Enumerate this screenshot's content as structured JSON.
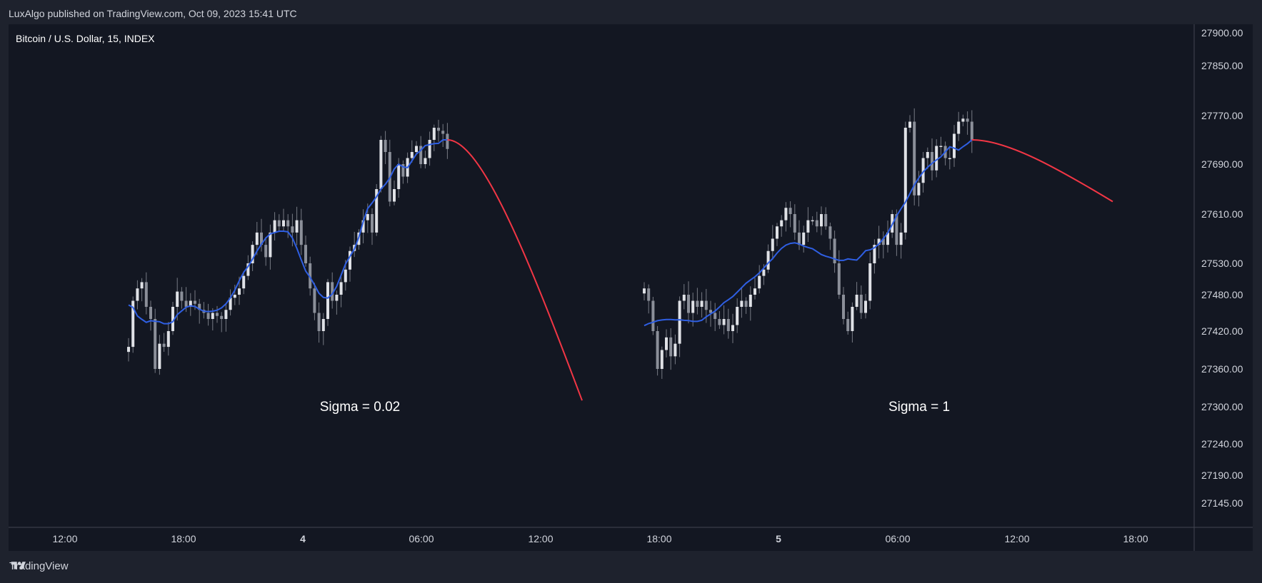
{
  "header": {
    "publisher": "LuxAlgo published on TradingView.com, Oct 09, 2023 15:41 UTC"
  },
  "symbol": "Bitcoin / U.S. Dollar, 15, INDEX",
  "footer": {
    "brand": "TradingView"
  },
  "colors": {
    "background": "#131722",
    "candle": "#c9ccd3",
    "smooth": "#2f5fe3",
    "forecast": "#f23645",
    "text": "#d1d4dc"
  },
  "chart_data": {
    "type": "candlestick",
    "y_axis": {
      "ticks": [
        27900,
        27850,
        27770,
        27690,
        27610,
        27530,
        27480,
        27420,
        27360,
        27300,
        27240,
        27190,
        27145
      ],
      "tick_labels": [
        "27900.00",
        "27850.00",
        "27770.00",
        "27690.00",
        "27610.00",
        "27530.00",
        "27480.00",
        "27420.00",
        "27360.00",
        "27300.00",
        "27240.00",
        "27190.00",
        "27145.00"
      ],
      "position": "right"
    },
    "x_axis": {
      "ticks": [
        {
          "label": "12:00",
          "bold": false
        },
        {
          "label": "18:00",
          "bold": false
        },
        {
          "label": "4",
          "bold": true
        },
        {
          "label": "06:00",
          "bold": false
        },
        {
          "label": "12:00",
          "bold": false
        },
        {
          "label": "18:00",
          "bold": false
        },
        {
          "label": "5",
          "bold": true
        },
        {
          "label": "06:00",
          "bold": false
        },
        {
          "label": "12:00",
          "bold": false
        },
        {
          "label": "18:00",
          "bold": false
        }
      ]
    },
    "panels": [
      {
        "annotation": "Sigma = 0.02",
        "close": [
          27395,
          27470,
          27490,
          27500,
          27460,
          27440,
          27360,
          27400,
          27395,
          27420,
          27460,
          27485,
          27470,
          27460,
          27470,
          27465,
          27455,
          27450,
          27440,
          27450,
          27445,
          27440,
          27455,
          27475,
          27480,
          27490,
          27510,
          27530,
          27560,
          27580,
          27560,
          27540,
          27580,
          27600,
          27590,
          27600,
          27590,
          27580,
          27600,
          27560,
          27530,
          27490,
          27450,
          27420,
          27440,
          27500,
          27470,
          27480,
          27500,
          27520,
          27550,
          27560,
          27580,
          27600,
          27610,
          27580,
          27650,
          27730,
          27710,
          27630,
          27650,
          27690,
          27670,
          27700,
          27710,
          27720,
          27690,
          27700,
          27730,
          27750,
          27745,
          27740,
          27715
        ],
        "smooth_end": 27730,
        "forecast_end": 27310
      },
      {
        "annotation": "Sigma = 1",
        "close": [
          27490,
          27470,
          27420,
          27360,
          27390,
          27410,
          27380,
          27400,
          27470,
          27480,
          27450,
          27470,
          27460,
          27470,
          27455,
          27450,
          27440,
          27430,
          27440,
          27420,
          27430,
          27460,
          27470,
          27460,
          27480,
          27490,
          27510,
          27520,
          27550,
          27570,
          27590,
          27600,
          27620,
          27610,
          27580,
          27560,
          27580,
          27600,
          27600,
          27590,
          27610,
          27590,
          27570,
          27530,
          27480,
          27440,
          27420,
          27460,
          27480,
          27450,
          27470,
          27530,
          27560,
          27570,
          27560,
          27580,
          27610,
          27560,
          27580,
          27750,
          27760,
          27640,
          27660,
          27700,
          27710,
          27680,
          27720,
          27720,
          27700,
          27700,
          27740,
          27760,
          27765,
          27760,
          27730
        ],
        "smooth_end": 27730,
        "forecast_end": 27630
      }
    ]
  }
}
